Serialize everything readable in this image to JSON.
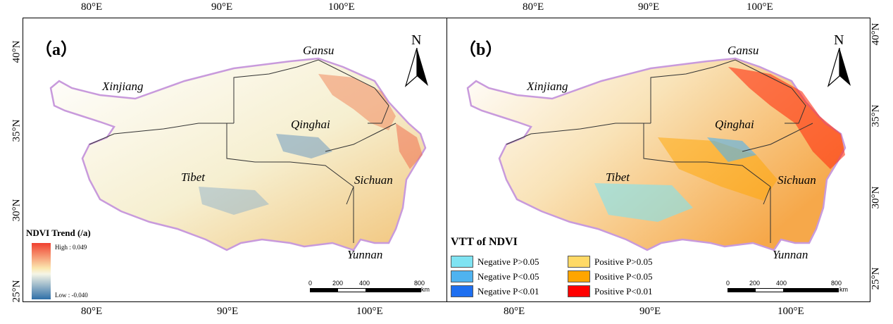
{
  "axes": {
    "top_left": [
      "80°E",
      "90°E",
      "100°E"
    ],
    "top_right": [
      "80°E",
      "90°E",
      "100°E"
    ],
    "bottom_left": [
      "80°E",
      "90°E",
      "100°E"
    ],
    "bottom_right": [
      "80°E",
      "90°E",
      "100°E"
    ],
    "lat_left": [
      "40°N",
      "35°N",
      "30°N",
      "25°N"
    ],
    "lat_right": [
      "40°N",
      "35°N",
      "30°N",
      "25°N"
    ]
  },
  "panel_a": {
    "label": "（a）",
    "north": "N",
    "provinces": {
      "gansu": "Gansu",
      "xinjiang": "Xinjiang",
      "qinghai": "Qinghai",
      "tibet": "Tibet",
      "sichuan": "Sichuan",
      "yunnan": "Yunnan"
    },
    "legend": {
      "title": "NDVI Trend (/a)",
      "high": "High : 0.049",
      "low": "Low : -0.040"
    },
    "scalebar": {
      "labels": [
        "0",
        "200",
        "400",
        "800"
      ],
      "unit": "km"
    }
  },
  "panel_b": {
    "label": "（b）",
    "north": "N",
    "provinces": {
      "gansu": "Gansu",
      "xinjiang": "Xinjiang",
      "qinghai": "Qinghai",
      "tibet": "Tibet",
      "sichuan": "Sichuan",
      "yunnan": "Yunnan"
    },
    "legend": {
      "title": "VTT of NDVI",
      "items": [
        {
          "label": "Negative P>0.05",
          "color": "#7fe3f2"
        },
        {
          "label": "Negative P<0.05",
          "color": "#4fb3f0"
        },
        {
          "label": "Negative P<0.01",
          "color": "#1e6ff0"
        },
        {
          "label": "Positive P>0.05",
          "color": "#ffd966"
        },
        {
          "label": "Positive P<0.05",
          "color": "#ffa500"
        },
        {
          "label": "Positive P<0.01",
          "color": "#ff0000"
        }
      ]
    },
    "scalebar": {
      "labels": [
        "0",
        "200",
        "400",
        "800"
      ],
      "unit": "km"
    }
  }
}
